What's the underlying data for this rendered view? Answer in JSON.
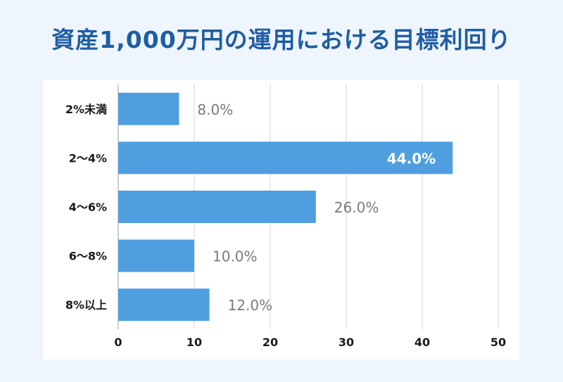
{
  "title": "資産1,000万円の運用における目標利回り",
  "colors": {
    "bar": "#4f9fe0",
    "title": "#1f5da3",
    "background": "#eef5fd",
    "grid": "#d6d6d6"
  },
  "chart_data": {
    "type": "bar",
    "orientation": "horizontal",
    "categories": [
      "2%未満",
      "2〜4%",
      "4〜6%",
      "6〜8%",
      "8%以上"
    ],
    "values": [
      8.0,
      44.0,
      26.0,
      10.0,
      12.0
    ],
    "value_labels": [
      "8.0%",
      "44.0%",
      "26.0%",
      "10.0%",
      "12.0%"
    ],
    "xlim": [
      0,
      50
    ],
    "xticks": [
      "0",
      "10",
      "20",
      "30",
      "40",
      "50"
    ],
    "grid": true,
    "legend": "none"
  }
}
